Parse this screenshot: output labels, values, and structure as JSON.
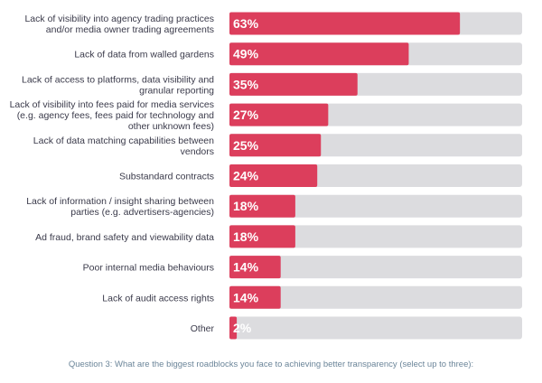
{
  "chart_data": {
    "type": "bar",
    "orientation": "horizontal",
    "categories": [
      [
        "Lack of visibility into agency trading practices",
        "and/or media owner trading agreements"
      ],
      [
        "Lack of data from walled gardens"
      ],
      [
        "Lack of access to platforms, data visibility and",
        "granular reporting"
      ],
      [
        "Lack of visibility into fees paid for media services",
        "(e.g. agency fees, fees paid for technology and",
        "other unknown fees)"
      ],
      [
        "Lack of data matching capabilities between",
        "vendors"
      ],
      [
        "Substandard contracts"
      ],
      [
        "Lack of information / insight sharing between",
        "parties (e.g. advertisers-agencies)"
      ],
      [
        "Ad fraud, brand safety and viewability data"
      ],
      [
        "Poor internal media behaviours"
      ],
      [
        "Lack of audit access rights"
      ],
      [
        "Other"
      ]
    ],
    "values": [
      63,
      49,
      35,
      27,
      25,
      24,
      18,
      18,
      14,
      14,
      2
    ],
    "value_labels": [
      "63%",
      "49%",
      "35%",
      "27%",
      "25%",
      "24%",
      "18%",
      "18%",
      "14%",
      "14%",
      "2%"
    ],
    "xlim": [
      0,
      80
    ],
    "bar_color": "#dc3e5c",
    "track_color": "#dcdcdf",
    "grid": false,
    "legend": "none"
  },
  "caption": "Question 3: What are the biggest roadblocks you face to achieving better transparency (select up to three):"
}
